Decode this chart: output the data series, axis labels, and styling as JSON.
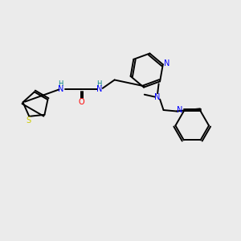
{
  "background_color": "#ebebeb",
  "atom_colors": {
    "N": "#0000ff",
    "O": "#ff0000",
    "S": "#cccc00",
    "C": "#000000",
    "H_label": "#008080"
  },
  "figsize": [
    3.0,
    3.0
  ],
  "dpi": 100
}
